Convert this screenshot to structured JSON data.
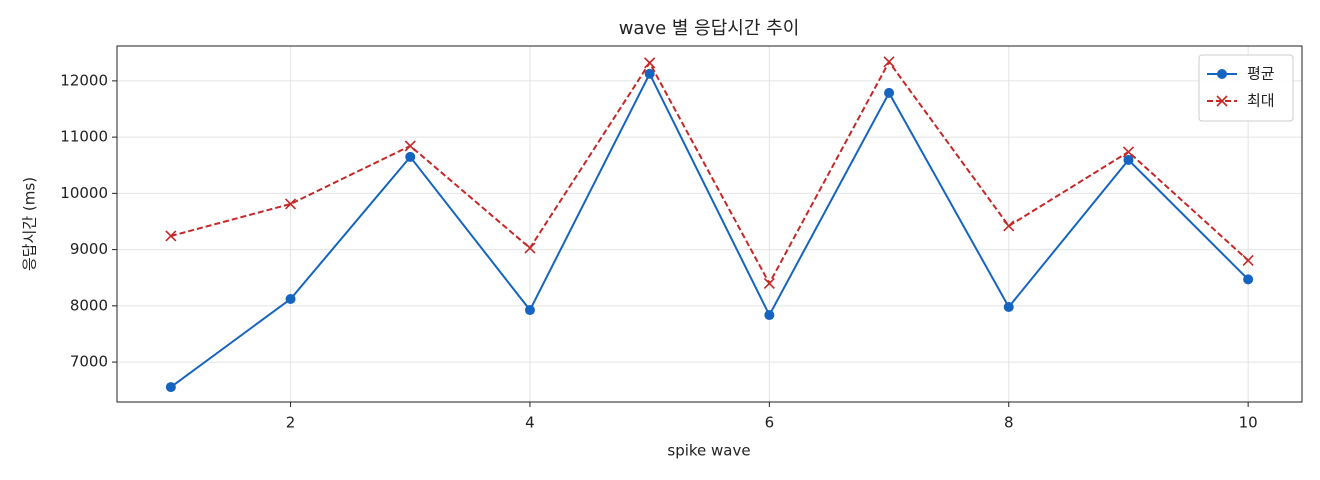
{
  "chart_data": {
    "type": "line",
    "title": "wave 별 응답시간 추이",
    "xlabel": "spike wave",
    "ylabel": "응답시간 (ms)",
    "x": [
      1,
      2,
      3,
      4,
      5,
      6,
      7,
      8,
      9,
      10
    ],
    "series": [
      {
        "name": "평균",
        "color": "#1565c0",
        "marker": "o",
        "linestyle": "solid",
        "values": [
          6555,
          8121,
          10648,
          7925,
          12125,
          7836,
          11786,
          7979,
          10594,
          8470
        ]
      },
      {
        "name": "최대",
        "color": "#c62828",
        "marker": "x",
        "linestyle": "dashed",
        "values": [
          9242,
          9811,
          10843,
          9028,
          12320,
          8399,
          12338,
          9420,
          10737,
          8808
        ]
      }
    ],
    "xlim": [
      0.55,
      10.45
    ],
    "ylim": [
      6290,
      12620
    ],
    "xticks": [
      2,
      4,
      6,
      8,
      10
    ],
    "yticks": [
      7000,
      8000,
      9000,
      10000,
      11000,
      12000
    ],
    "grid": true,
    "legend": "upper right"
  }
}
